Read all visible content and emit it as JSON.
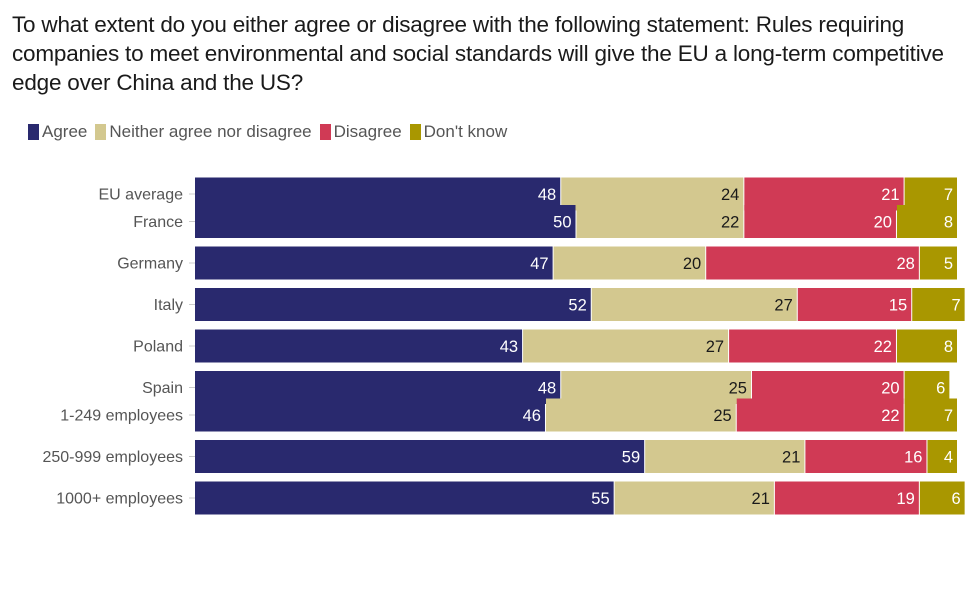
{
  "chart_data": {
    "type": "bar",
    "orientation": "horizontal",
    "stacked": true,
    "title": "To what extent do you either agree or disagree with the following statement: Rules requiring companies to meet environmental and social standards will give the EU a long-term competitive edge over China and the US?",
    "xlabel": "",
    "ylabel": "",
    "xlim": [
      0,
      100
    ],
    "grid": false,
    "legend_position": "top-left",
    "groups": [
      [
        "EU average"
      ],
      [
        "France",
        "Germany",
        "Italy",
        "Poland",
        "Spain"
      ],
      [
        "1-249 employees",
        "250-999 employees",
        "1000+ employees"
      ]
    ],
    "categories": [
      "EU average",
      "France",
      "Germany",
      "Italy",
      "Poland",
      "Spain",
      "1-249 employees",
      "250-999 employees",
      "1000+ employees"
    ],
    "series": [
      {
        "name": "Agree",
        "color": "#29296e",
        "label_color": "#ffffff",
        "values": [
          48,
          50,
          47,
          52,
          43,
          48,
          46,
          59,
          55
        ]
      },
      {
        "name": "Neither agree nor disagree",
        "color": "#d3c88f",
        "label_color": "#1a1a1a",
        "values": [
          24,
          22,
          20,
          27,
          27,
          25,
          25,
          21,
          21
        ]
      },
      {
        "name": "Disagree",
        "color": "#d03a55",
        "label_color": "#ffffff",
        "values": [
          21,
          20,
          28,
          15,
          22,
          20,
          22,
          16,
          19
        ]
      },
      {
        "name": "Don't know",
        "color": "#a99700",
        "label_color": "#ffffff",
        "values": [
          7,
          8,
          5,
          7,
          8,
          6,
          7,
          4,
          6
        ]
      }
    ]
  }
}
